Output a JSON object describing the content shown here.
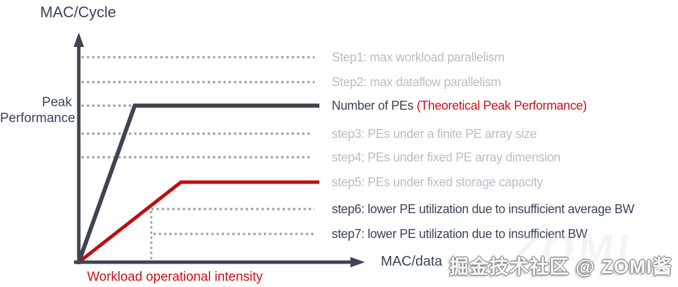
{
  "colors": {
    "dark": "#3e4450",
    "text_dark": "#3a4456",
    "gray_text": "#b8bec6",
    "dotted": "#969ca3",
    "red_line": "#bf0d12",
    "red_text": "#cf1016",
    "watermark_gray": "#909090"
  },
  "watermark": {
    "text": "掘金技术社区 @ ZOMI酱",
    "ghost": "ZOMI"
  },
  "chart_data": {
    "type": "line",
    "title": "",
    "ylabel": "MAC/Cycle",
    "xlabel": "MAC/data",
    "y_axis_side_label": [
      "Peak",
      "Performance"
    ],
    "x_axis_annotation": "Workload operational intensity",
    "axes_numeric": false,
    "grid": "off",
    "legend_position": "right-of-lines",
    "note": "Conceptual roofline diagram; no numeric ticks shown, coordinates are normalized 0-1 estimates of the drawing.",
    "series": [
      {
        "name": "Number of PEs (Theoretical Peak Performance)",
        "color_key": "dark",
        "stroke_width": 6,
        "dotted_stub_to_bend": true,
        "points": [
          [
            0,
            0
          ],
          [
            0.196,
            0.698
          ],
          [
            0.843,
            0.698
          ]
        ]
      },
      {
        "name": "step5: PEs under fixed storage capacity",
        "color_key": "red_line",
        "stroke_width": 5,
        "dotted_stub_to_bend": false,
        "points": [
          [
            0,
            0
          ],
          [
            0.358,
            0.357
          ],
          [
            0.843,
            0.357
          ]
        ]
      }
    ],
    "vertical_marker": {
      "x": 0.254,
      "level": 0.237,
      "label": "Workload operational intensity"
    },
    "steps": [
      {
        "id": "step1",
        "label": "Step1: max workload parallelism",
        "tone": "gray",
        "level": 0.914,
        "line": {
          "kind": "dotted",
          "x1": 0.01,
          "x2": 0.826
        }
      },
      {
        "id": "step2",
        "label": "Step2: max dataflow parallelism",
        "tone": "gray",
        "level": 0.803,
        "line": {
          "kind": "dotted",
          "x1": 0.01,
          "x2": 0.826
        }
      },
      {
        "id": "number-of-pes",
        "label": "Number of PEs ",
        "label_suffix": "(Theoretical Peak Performance)",
        "tone": "dark",
        "suffix_tone": "red",
        "level": 0.698,
        "line": {
          "kind": "series"
        }
      },
      {
        "id": "step3",
        "label": "step3: PEs under a finite PE array size",
        "tone": "gray",
        "level": 0.573,
        "line": {
          "kind": "dotted",
          "x1": 0.01,
          "x2": 0.81
        }
      },
      {
        "id": "step4",
        "label": "step4: PEs under fixed PE array dimension",
        "tone": "gray",
        "level": 0.468,
        "line": {
          "kind": "dotted",
          "x1": 0.01,
          "x2": 0.81
        }
      },
      {
        "id": "step5",
        "label": "step5: PEs under fixed storage capacity",
        "tone": "gray",
        "level": 0.357,
        "line": {
          "kind": "series"
        }
      },
      {
        "id": "step6",
        "label": "step6:  lower PE utilization due to insufficient average BW",
        "tone": "dark",
        "level": 0.237,
        "line": {
          "kind": "dotted",
          "x1": 0.254,
          "x2": 0.826
        }
      },
      {
        "id": "step7",
        "label": "step7:  lower PE utilization due to insufficient BW",
        "tone": "dark",
        "level": 0.126,
        "line": {
          "kind": "dotted",
          "x1": 0.262,
          "x2": 0.826
        }
      }
    ]
  }
}
